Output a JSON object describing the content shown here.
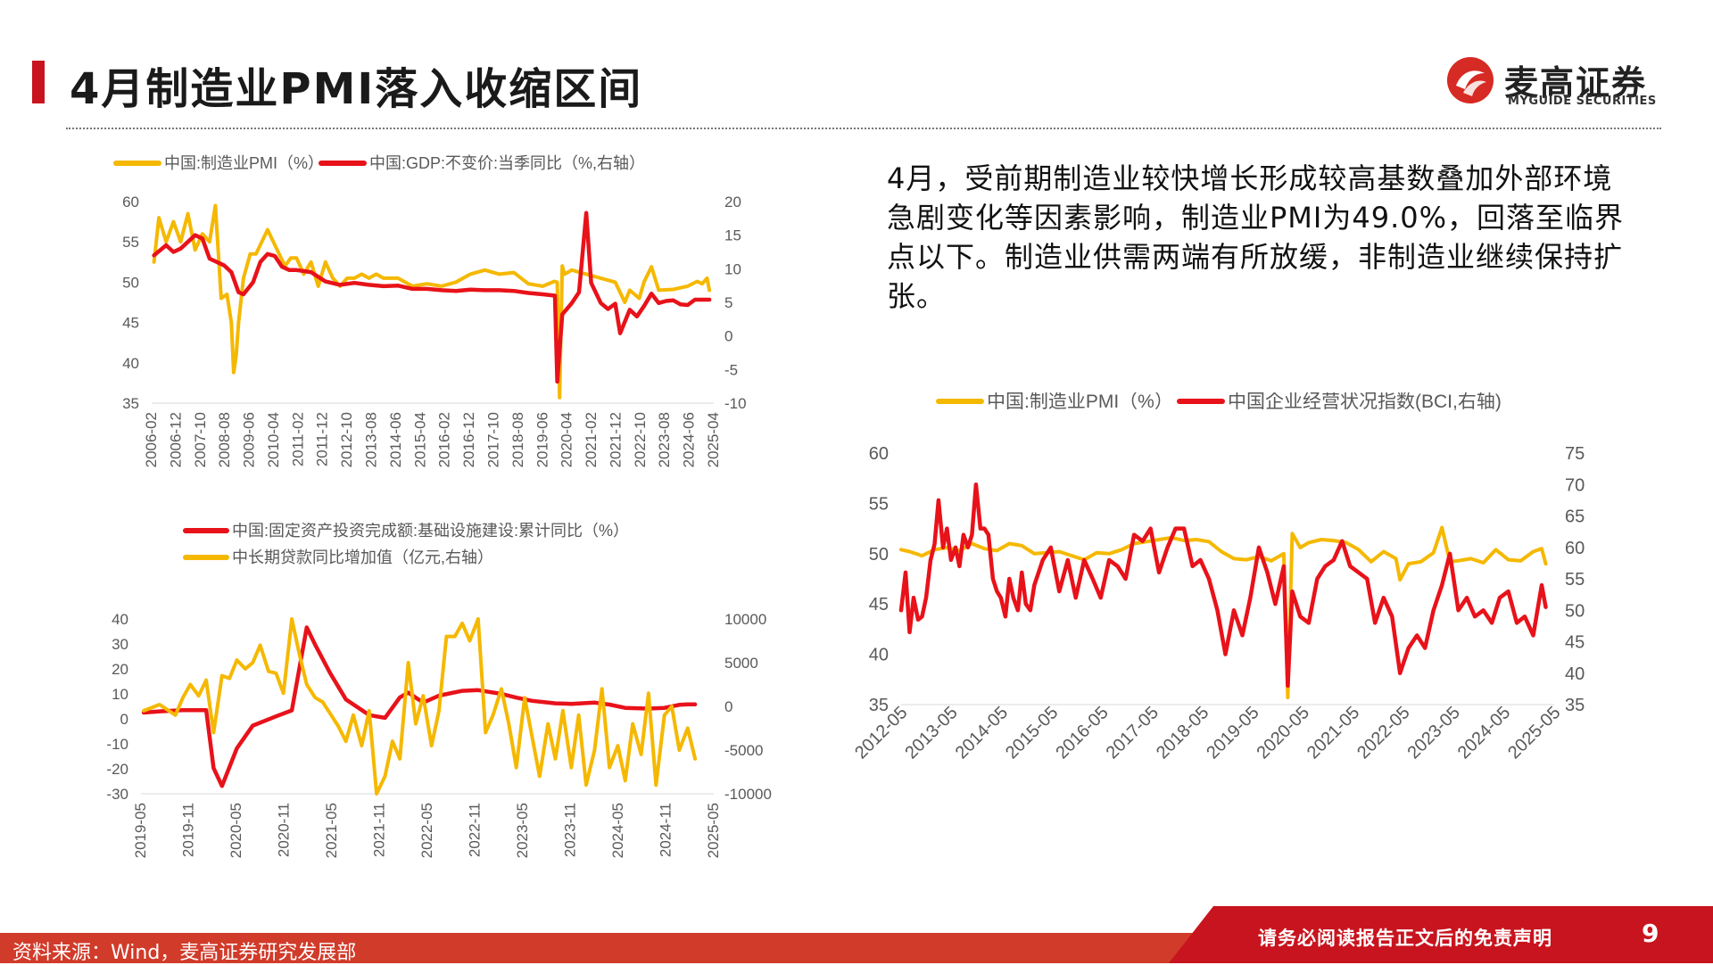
{
  "header": {
    "title": "4月制造业PMI落入收缩区间",
    "brand_name": "麦高证券",
    "brand_sub": "MYGUIDE SECURITIES"
  },
  "commentary": "4月，受前期制造业较快增长形成较高基数叠加外部环境急剧变化等因素影响，制造业PMI为49.0%，回落至临界点以下。制造业供需两端有所放缓，非制造业继续保持扩张。",
  "footer": {
    "source": "资料来源：Wind，麦高证券研究发展部",
    "disclaimer": "请务必阅读报告正文后的免责声明",
    "page_number": "9"
  },
  "colors": {
    "accent_red": "#e8121a",
    "pmi_yellow": "#f5b800",
    "brand_red": "#c8141e"
  },
  "chart_data": [
    {
      "type": "line",
      "series": [
        {
          "name": "中国:制造业PMI（%）",
          "axis": "left",
          "color": "#f5b800",
          "x": [
            2006.08,
            2006.25,
            2006.5,
            2006.75,
            2007.0,
            2007.25,
            2007.5,
            2007.75,
            2008.0,
            2008.2,
            2008.4,
            2008.6,
            2008.75,
            2008.83,
            2008.92,
            2009.0,
            2009.17,
            2009.4,
            2009.6,
            2009.8,
            2010.0,
            2010.2,
            2010.4,
            2010.6,
            2010.8,
            2011.0,
            2011.25,
            2011.5,
            2011.75,
            2012.0,
            2012.25,
            2012.5,
            2012.75,
            2013.0,
            2013.25,
            2013.5,
            2013.75,
            2014.0,
            2014.5,
            2015.0,
            2015.5,
            2016.0,
            2016.5,
            2017.0,
            2017.5,
            2018.0,
            2018.5,
            2019.0,
            2019.5,
            2019.9,
            2020.0,
            2020.08,
            2020.17,
            2020.25,
            2020.5,
            2021.0,
            2021.5,
            2022.0,
            2022.33,
            2022.5,
            2022.83,
            2023.0,
            2023.25,
            2023.5,
            2024.0,
            2024.5,
            2024.83,
            2025.0,
            2025.17,
            2025.25
          ],
          "values": [
            52.5,
            58.0,
            55.0,
            57.5,
            55.0,
            58.5,
            54.0,
            56.0,
            55.0,
            59.5,
            48.0,
            48.5,
            45.0,
            38.8,
            41.0,
            45.0,
            50.5,
            53.5,
            53.5,
            55.0,
            56.5,
            55.0,
            53.5,
            52.0,
            53.0,
            53.0,
            51.0,
            52.5,
            49.5,
            52.5,
            50.5,
            49.5,
            50.5,
            50.5,
            51.0,
            50.5,
            51.0,
            50.5,
            50.5,
            49.5,
            49.8,
            49.5,
            50.0,
            51.0,
            51.5,
            51.0,
            51.2,
            49.8,
            49.5,
            50.1,
            50.0,
            35.7,
            52.0,
            51.0,
            51.5,
            51.0,
            50.5,
            50.0,
            47.5,
            49.0,
            48.0,
            50.1,
            51.9,
            49.0,
            49.1,
            49.5,
            50.1,
            49.8,
            50.5,
            49.0
          ]
        },
        {
          "name": "中国:GDP:不变价:当季同比（%,右轴）",
          "axis": "right",
          "color": "#e8121a",
          "x": [
            2006.08,
            2006.5,
            2006.75,
            2007.0,
            2007.25,
            2007.5,
            2007.75,
            2008.0,
            2008.5,
            2008.75,
            2009.0,
            2009.17,
            2009.5,
            2009.75,
            2010.0,
            2010.25,
            2010.5,
            2010.75,
            2011.0,
            2011.5,
            2012.0,
            2012.5,
            2013.0,
            2013.5,
            2014.0,
            2014.5,
            2015.0,
            2015.5,
            2016.0,
            2016.5,
            2017.0,
            2017.5,
            2018.0,
            2018.5,
            2019.0,
            2019.5,
            2019.92,
            2020.0,
            2020.17,
            2020.5,
            2020.75,
            2021.0,
            2021.17,
            2021.5,
            2021.75,
            2022.0,
            2022.17,
            2022.5,
            2022.75,
            2023.0,
            2023.25,
            2023.5,
            2023.75,
            2024.0,
            2024.25,
            2024.5,
            2024.75,
            2025.0,
            2025.25
          ],
          "values": [
            12.0,
            13.5,
            12.5,
            13.0,
            14.0,
            15.0,
            14.5,
            11.5,
            10.5,
            9.5,
            6.5,
            6.2,
            8.0,
            11.0,
            12.2,
            11.9,
            10.3,
            9.8,
            9.8,
            9.5,
            8.1,
            7.6,
            7.9,
            7.6,
            7.4,
            7.5,
            7.0,
            7.0,
            6.8,
            6.7,
            6.9,
            6.8,
            6.8,
            6.7,
            6.4,
            6.2,
            6.0,
            -6.8,
            3.2,
            4.9,
            6.5,
            18.3,
            7.9,
            4.9,
            4.0,
            4.8,
            0.4,
            3.9,
            2.9,
            4.5,
            6.3,
            4.9,
            5.2,
            5.3,
            4.7,
            4.6,
            5.4,
            5.4,
            5.4
          ]
        }
      ],
      "y_left": {
        "range": [
          35,
          60
        ],
        "ticks": [
          "60",
          "55",
          "50",
          "45",
          "40",
          "35"
        ]
      },
      "y_right": {
        "range": [
          -10,
          20
        ],
        "ticks": [
          "20",
          "15",
          "10",
          "5",
          "0",
          "-5",
          "-10"
        ]
      },
      "x_range": [
        2006.0,
        2025.4
      ],
      "x_ticks": [
        "2006-02",
        "2006-12",
        "2007-10",
        "2008-08",
        "2009-06",
        "2010-04",
        "2011-02",
        "2011-12",
        "2012-10",
        "2013-08",
        "2014-06",
        "2015-04",
        "2016-02",
        "2016-12",
        "2017-10",
        "2018-08",
        "2019-06",
        "2020-04",
        "2021-02",
        "2021-12",
        "2022-10",
        "2023-08",
        "2024-06",
        "2025-04"
      ],
      "legend": "top"
    },
    {
      "type": "line",
      "series": [
        {
          "name": "中国:固定资产投资完成额:基础设施建设:累计同比（%）",
          "axis": "left",
          "color": "#e8121a",
          "x": [
            2019.33,
            2019.5,
            2019.75,
            2019.92,
            2020.0,
            2020.08,
            2020.17,
            2020.33,
            2020.5,
            2020.75,
            2020.92,
            2021.08,
            2021.17,
            2021.33,
            2021.5,
            2021.75,
            2021.92,
            2022.08,
            2022.17,
            2022.33,
            2022.5,
            2022.75,
            2022.92,
            2023.17,
            2023.33,
            2023.5,
            2023.75,
            2023.92,
            2024.17,
            2024.33,
            2024.5,
            2024.75,
            2024.92,
            2025.08,
            2025.17,
            2025.25
          ],
          "values": [
            2.5,
            3.0,
            3.5,
            3.5,
            3.5,
            -19.7,
            -26.9,
            -11.8,
            -2.7,
            1.0,
            3.4,
            36.6,
            29.7,
            18.4,
            7.8,
            1.5,
            0.4,
            8.6,
            10.5,
            6.5,
            9.3,
            11.2,
            11.5,
            10.0,
            8.5,
            7.2,
            6.2,
            6.0,
            6.5,
            5.7,
            4.4,
            4.1,
            4.4,
            5.6,
            5.8,
            5.8
          ]
        },
        {
          "name": "中长期贷款同比增加值（亿元,右轴）",
          "axis": "right",
          "color": "#f5b800",
          "x": [
            2019.33,
            2019.5,
            2019.67,
            2019.75,
            2019.83,
            2019.92,
            2020.0,
            2020.08,
            2020.17,
            2020.25,
            2020.33,
            2020.42,
            2020.5,
            2020.58,
            2020.67,
            2020.75,
            2020.83,
            2020.92,
            2021.0,
            2021.08,
            2021.17,
            2021.25,
            2021.33,
            2021.42,
            2021.5,
            2021.58,
            2021.67,
            2021.75,
            2021.83,
            2021.92,
            2022.0,
            2022.08,
            2022.17,
            2022.25,
            2022.33,
            2022.42,
            2022.5,
            2022.58,
            2022.67,
            2022.75,
            2022.83,
            2022.92,
            2023.0,
            2023.08,
            2023.17,
            2023.25,
            2023.33,
            2023.42,
            2023.5,
            2023.58,
            2023.67,
            2023.75,
            2023.83,
            2023.92,
            2024.0,
            2024.08,
            2024.17,
            2024.25,
            2024.33,
            2024.42,
            2024.5,
            2024.58,
            2024.67,
            2024.75,
            2024.83,
            2024.92,
            2025.0,
            2025.08,
            2025.17,
            2025.25
          ],
          "values": [
            -500,
            200,
            -1000,
            1000,
            2500,
            1200,
            3000,
            -3000,
            3500,
            3200,
            5300,
            4300,
            5000,
            7000,
            4000,
            3800,
            1500,
            10000,
            6000,
            2500,
            1000,
            500,
            -800,
            -2300,
            -4000,
            -1000,
            -4500,
            -500,
            -10000,
            -8000,
            -4000,
            -6000,
            5000,
            -2000,
            1200,
            -4500,
            -500,
            8000,
            8000,
            9500,
            7500,
            10000,
            -3000,
            -1000,
            2000,
            -2000,
            -7000,
            1000,
            -3500,
            -8000,
            -2000,
            -6000,
            -500,
            -7000,
            -1000,
            -9000,
            -5000,
            2000,
            -7000,
            -4500,
            -8500,
            -2000,
            -5500,
            1500,
            -9000,
            -1000,
            0,
            -5000,
            -2500,
            -6000
          ]
        }
      ],
      "y_left": {
        "range": [
          -30,
          40
        ],
        "ticks": [
          "40",
          "30",
          "20",
          "10",
          "0",
          "-10",
          "-20",
          "-30"
        ]
      },
      "y_right": {
        "range": [
          -10000,
          10000
        ],
        "ticks": [
          "10000",
          "5000",
          "0",
          "-5000",
          "-10000"
        ]
      },
      "x_range": [
        2019.3,
        2025.45
      ],
      "x_ticks": [
        "2019-05",
        "2019-11",
        "2020-05",
        "2020-11",
        "2021-05",
        "2021-11",
        "2022-05",
        "2022-11",
        "2023-05",
        "2023-11",
        "2024-05",
        "2024-11",
        "2025-05"
      ],
      "legend": "top"
    },
    {
      "type": "line",
      "series": [
        {
          "name": "中国:制造业PMI（%）",
          "axis": "left",
          "color": "#f5b800",
          "x": [
            2012.33,
            2012.5,
            2012.75,
            2013.0,
            2013.25,
            2013.5,
            2013.75,
            2014.0,
            2014.25,
            2014.5,
            2014.75,
            2015.0,
            2015.25,
            2015.5,
            2015.75,
            2016.0,
            2016.25,
            2016.5,
            2016.75,
            2017.0,
            2017.25,
            2017.5,
            2017.75,
            2018.0,
            2018.25,
            2018.5,
            2018.75,
            2019.0,
            2019.25,
            2019.5,
            2019.75,
            2020.0,
            2020.08,
            2020.17,
            2020.33,
            2020.5,
            2020.75,
            2021.0,
            2021.25,
            2021.5,
            2021.75,
            2022.0,
            2022.25,
            2022.33,
            2022.5,
            2022.75,
            2023.0,
            2023.17,
            2023.33,
            2023.5,
            2023.75,
            2024.0,
            2024.25,
            2024.5,
            2024.75,
            2025.0,
            2025.17,
            2025.25
          ],
          "values": [
            50.4,
            50.2,
            49.8,
            50.4,
            50.6,
            50.3,
            51.0,
            50.5,
            50.3,
            51.0,
            50.8,
            50.0,
            50.1,
            50.2,
            49.8,
            49.4,
            50.1,
            50.0,
            50.4,
            51.0,
            51.2,
            51.4,
            51.6,
            51.3,
            51.4,
            51.2,
            50.2,
            49.5,
            49.4,
            49.7,
            49.3,
            50.0,
            35.7,
            52.0,
            50.6,
            51.1,
            51.4,
            51.3,
            51.1,
            50.4,
            49.2,
            50.2,
            49.5,
            47.4,
            49.0,
            49.2,
            50.1,
            52.6,
            49.2,
            49.3,
            49.5,
            49.1,
            50.4,
            49.4,
            49.3,
            50.2,
            50.5,
            49.0
          ]
        },
        {
          "name": "中国企业经营状况指数(BCI,右轴)",
          "axis": "right",
          "color": "#e8121a",
          "x": [
            2012.33,
            2012.42,
            2012.5,
            2012.58,
            2012.67,
            2012.75,
            2012.83,
            2012.92,
            2013.0,
            2013.08,
            2013.17,
            2013.25,
            2013.33,
            2013.42,
            2013.5,
            2013.58,
            2013.67,
            2013.75,
            2013.83,
            2013.92,
            2014.0,
            2014.08,
            2014.17,
            2014.25,
            2014.33,
            2014.42,
            2014.5,
            2014.58,
            2014.67,
            2014.75,
            2014.83,
            2014.92,
            2015.0,
            2015.17,
            2015.33,
            2015.5,
            2015.67,
            2015.83,
            2016.0,
            2016.17,
            2016.33,
            2016.5,
            2016.67,
            2016.83,
            2017.0,
            2017.17,
            2017.33,
            2017.5,
            2017.67,
            2017.83,
            2018.0,
            2018.17,
            2018.33,
            2018.5,
            2018.67,
            2018.83,
            2019.0,
            2019.17,
            2019.33,
            2019.5,
            2019.67,
            2019.83,
            2020.0,
            2020.08,
            2020.17,
            2020.33,
            2020.5,
            2020.67,
            2020.83,
            2021.0,
            2021.17,
            2021.33,
            2021.5,
            2021.67,
            2021.83,
            2022.0,
            2022.17,
            2022.33,
            2022.5,
            2022.67,
            2022.83,
            2023.0,
            2023.17,
            2023.33,
            2023.5,
            2023.67,
            2023.83,
            2024.0,
            2024.17,
            2024.33,
            2024.5,
            2024.67,
            2024.83,
            2025.0,
            2025.17,
            2025.25
          ],
          "values": [
            50.0,
            56.0,
            46.5,
            52.0,
            48.5,
            49.0,
            52.0,
            58.0,
            60.5,
            67.5,
            60.0,
            63.0,
            58.0,
            60.0,
            57.0,
            62.0,
            60.0,
            62.0,
            70.0,
            63.0,
            63.0,
            62.0,
            55.0,
            53.0,
            52.0,
            49.0,
            55.0,
            52.0,
            50.0,
            56.0,
            51.0,
            50.0,
            54.0,
            58.0,
            60.0,
            53.0,
            58.0,
            52.0,
            58.0,
            55.0,
            52.0,
            58.0,
            57.0,
            55.0,
            62.0,
            61.0,
            63.0,
            56.0,
            60.0,
            63.0,
            63.0,
            57.0,
            58.0,
            55.0,
            50.0,
            43.0,
            50.0,
            46.0,
            52.0,
            60.0,
            56.0,
            51.0,
            57.0,
            38.0,
            53.0,
            49.0,
            48.0,
            55.0,
            57.0,
            58.0,
            61.0,
            57.0,
            56.0,
            55.0,
            48.0,
            52.0,
            49.0,
            40.0,
            44.0,
            46.0,
            44.0,
            50.0,
            54.0,
            59.0,
            50.0,
            52.0,
            49.0,
            50.0,
            48.0,
            52.0,
            53.0,
            48.0,
            49.0,
            46.0,
            54.0,
            50.5
          ]
        }
      ],
      "y_left": {
        "range": [
          35,
          60
        ],
        "ticks": [
          "60",
          "55",
          "50",
          "45",
          "40",
          "35"
        ]
      },
      "y_right": {
        "range": [
          35,
          75
        ],
        "ticks": [
          "75",
          "70",
          "65",
          "60",
          "55",
          "50",
          "45",
          "40",
          "35"
        ]
      },
      "x_range": [
        2012.33,
        2025.42
      ],
      "x_ticks": [
        "2012-05",
        "2013-05",
        "2014-05",
        "2015-05",
        "2016-05",
        "2017-05",
        "2018-05",
        "2019-05",
        "2020-05",
        "2021-05",
        "2022-05",
        "2023-05",
        "2024-05",
        "2025-05"
      ],
      "legend": "top"
    }
  ]
}
